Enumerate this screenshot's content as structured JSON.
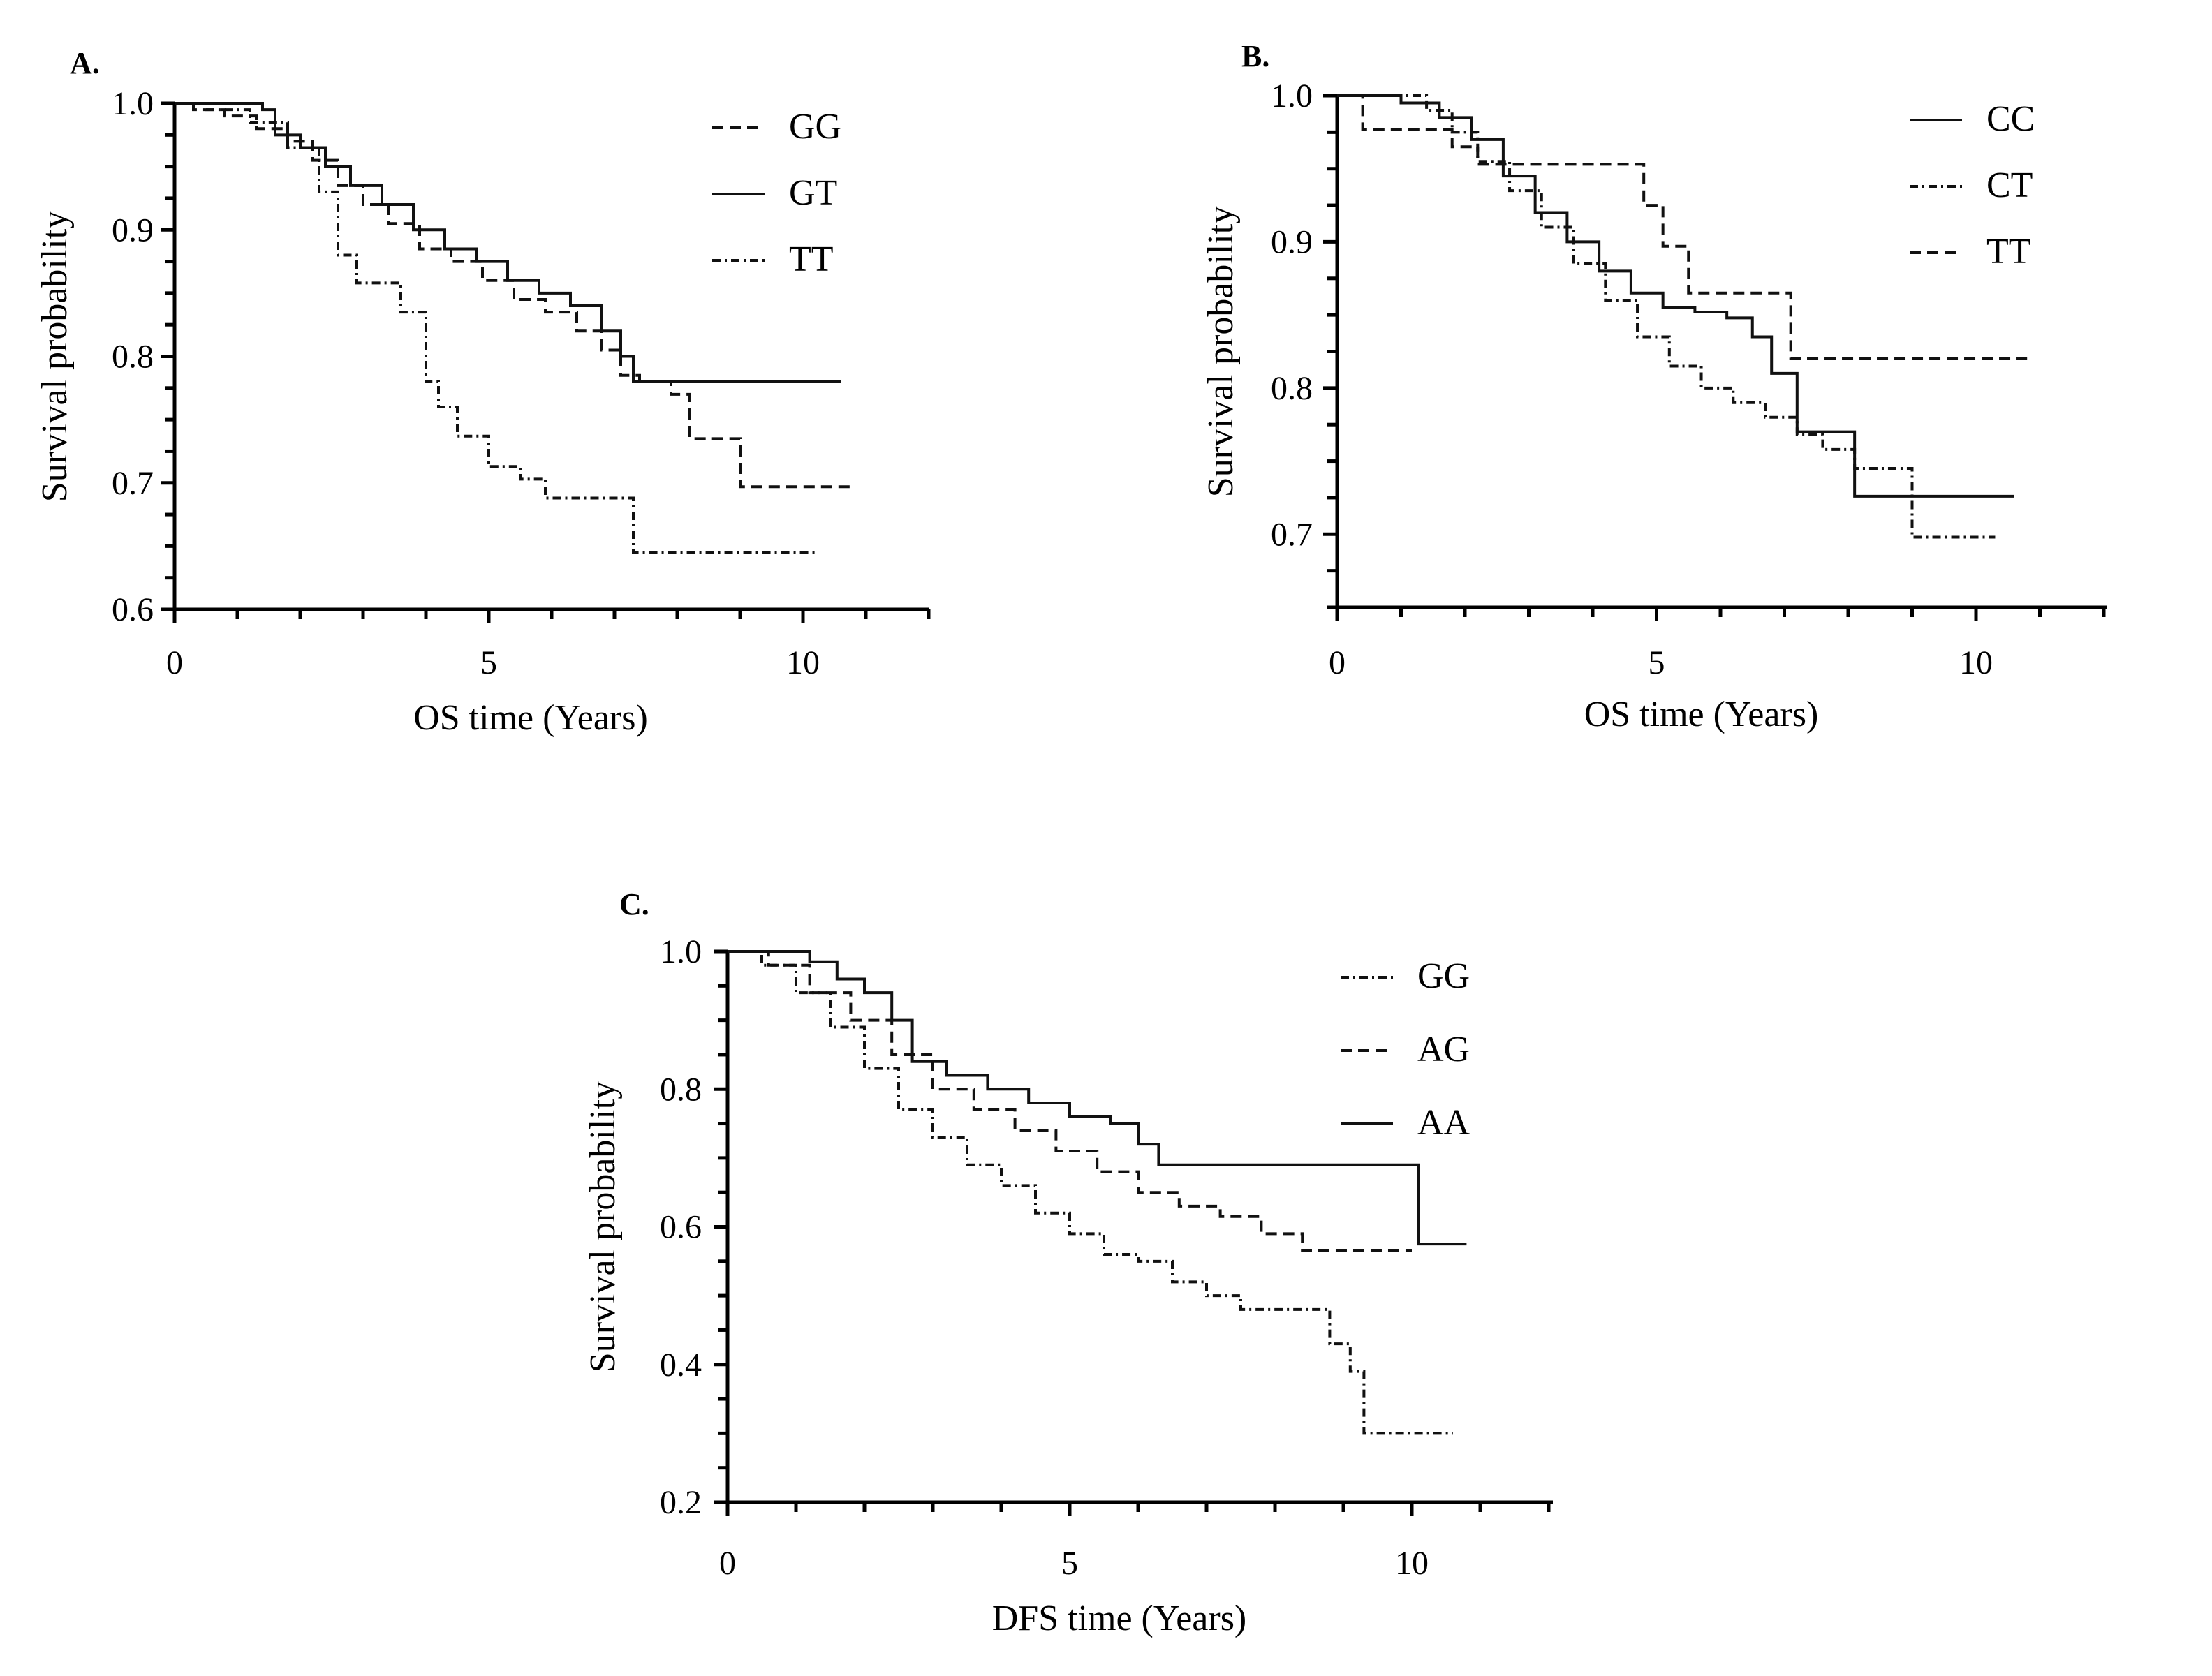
{
  "chart_data": [
    {
      "panel": "A.",
      "type": "line",
      "style": "step",
      "xlabel": "OS  time (Years)",
      "ylabel": "Survival probability",
      "xlim": [
        0,
        12
      ],
      "ylim": [
        0.6,
        1.0
      ],
      "xticks": [
        0,
        5,
        10
      ],
      "yticks": [
        0.6,
        0.7,
        0.8,
        0.9,
        1.0
      ],
      "legend_position": "top-right",
      "series": [
        {
          "name": "GG",
          "dash": "dashed",
          "x": [
            0,
            0.3,
            0.8,
            1.3,
            1.8,
            2.2,
            2.6,
            3.0,
            3.4,
            3.9,
            4.4,
            4.9,
            5.4,
            5.9,
            6.4,
            6.8,
            7.1,
            7.4,
            7.9,
            8.2,
            9.0,
            10.8
          ],
          "y": [
            1.0,
            0.995,
            0.99,
            0.98,
            0.97,
            0.955,
            0.935,
            0.92,
            0.905,
            0.885,
            0.875,
            0.86,
            0.845,
            0.835,
            0.82,
            0.805,
            0.785,
            0.78,
            0.77,
            0.735,
            0.697,
            0.697
          ]
        },
        {
          "name": "GT",
          "dash": "solid",
          "x": [
            0,
            1.4,
            1.6,
            2.0,
            2.4,
            2.8,
            3.3,
            3.8,
            4.3,
            4.8,
            5.3,
            5.8,
            6.3,
            6.8,
            7.1,
            7.3,
            10.6
          ],
          "y": [
            1.0,
            0.995,
            0.975,
            0.965,
            0.95,
            0.935,
            0.92,
            0.9,
            0.885,
            0.875,
            0.86,
            0.85,
            0.84,
            0.82,
            0.8,
            0.78,
            0.78
          ]
        },
        {
          "name": "TT",
          "dash": "dotdash",
          "x": [
            0,
            0.5,
            1.2,
            1.8,
            2.3,
            2.6,
            2.9,
            3.6,
            4.0,
            4.2,
            4.5,
            5.0,
            5.5,
            5.9,
            6.5,
            7.3,
            10.2
          ],
          "y": [
            1.0,
            0.995,
            0.985,
            0.965,
            0.93,
            0.88,
            0.858,
            0.835,
            0.78,
            0.76,
            0.737,
            0.713,
            0.703,
            0.688,
            0.688,
            0.645,
            0.645
          ]
        }
      ]
    },
    {
      "panel": "B.",
      "type": "line",
      "style": "step",
      "xlabel": "OS time (Years)",
      "ylabel": "Survival probability",
      "xlim": [
        0,
        12
      ],
      "ylim": [
        0.65,
        1.0
      ],
      "xticks": [
        0,
        5,
        10
      ],
      "yticks": [
        0.7,
        0.8,
        0.9,
        1.0
      ],
      "legend_position": "top-right",
      "series": [
        {
          "name": "CC",
          "dash": "solid",
          "x": [
            0,
            1.0,
            1.6,
            2.1,
            2.6,
            3.1,
            3.6,
            4.1,
            4.6,
            5.1,
            5.6,
            6.1,
            6.5,
            6.8,
            7.2,
            8.1,
            10.6
          ],
          "y": [
            1.0,
            0.995,
            0.985,
            0.97,
            0.945,
            0.92,
            0.9,
            0.88,
            0.865,
            0.855,
            0.852,
            0.848,
            0.835,
            0.81,
            0.77,
            0.726,
            0.726
          ]
        },
        {
          "name": "CT",
          "dash": "dotdash",
          "x": [
            0,
            1.4,
            1.8,
            2.2,
            2.7,
            3.2,
            3.7,
            4.2,
            4.7,
            5.2,
            5.7,
            6.2,
            6.7,
            7.2,
            7.6,
            8.1,
            9.0,
            10.3
          ],
          "y": [
            1.0,
            0.99,
            0.975,
            0.955,
            0.935,
            0.91,
            0.885,
            0.86,
            0.835,
            0.815,
            0.8,
            0.79,
            0.78,
            0.768,
            0.758,
            0.745,
            0.698,
            0.698
          ]
        },
        {
          "name": "TT",
          "dash": "dashed",
          "x": [
            0,
            0.4,
            1.0,
            1.8,
            2.2,
            2.5,
            4.8,
            5.1,
            5.5,
            5.9,
            6.8,
            7.1,
            10.8
          ],
          "y": [
            1.0,
            0.977,
            0.977,
            0.965,
            0.953,
            0.953,
            0.925,
            0.897,
            0.865,
            0.865,
            0.865,
            0.82,
            0.82
          ]
        }
      ]
    },
    {
      "panel": "C.",
      "type": "line",
      "style": "step",
      "xlabel": "DFS time (Years)",
      "ylabel": "Survival probability",
      "xlim": [
        0,
        12
      ],
      "ylim": [
        0.2,
        1.0
      ],
      "xticks": [
        0,
        5,
        10
      ],
      "yticks": [
        0.2,
        0.4,
        0.6,
        0.8,
        1.0
      ],
      "legend_position": "top-right",
      "series": [
        {
          "name": "GG",
          "dash": "dotdash",
          "x": [
            0,
            0.5,
            1.0,
            1.5,
            2.0,
            2.5,
            3.0,
            3.5,
            4.0,
            4.5,
            5.0,
            5.5,
            6.0,
            6.5,
            7.0,
            7.5,
            8.5,
            8.8,
            9.1,
            9.3,
            10.6
          ],
          "y": [
            1.0,
            0.98,
            0.94,
            0.89,
            0.83,
            0.77,
            0.73,
            0.69,
            0.66,
            0.62,
            0.59,
            0.56,
            0.55,
            0.52,
            0.5,
            0.48,
            0.48,
            0.43,
            0.39,
            0.3,
            0.3
          ]
        },
        {
          "name": "AG",
          "dash": "dashed",
          "x": [
            0,
            0.6,
            1.2,
            1.8,
            2.4,
            3.0,
            3.6,
            4.2,
            4.8,
            5.4,
            6.0,
            6.6,
            7.2,
            7.8,
            8.4,
            10.0
          ],
          "y": [
            1.0,
            0.98,
            0.94,
            0.9,
            0.85,
            0.8,
            0.77,
            0.74,
            0.71,
            0.68,
            0.65,
            0.63,
            0.615,
            0.59,
            0.565,
            0.565
          ]
        },
        {
          "name": "AA",
          "dash": "solid",
          "x": [
            0,
            1.2,
            1.6,
            2.0,
            2.4,
            2.7,
            3.2,
            3.8,
            4.4,
            5.0,
            5.6,
            6.0,
            6.3,
            10.0,
            10.1,
            10.8
          ],
          "y": [
            1.0,
            0.985,
            0.96,
            0.94,
            0.9,
            0.84,
            0.82,
            0.8,
            0.78,
            0.76,
            0.75,
            0.72,
            0.69,
            0.69,
            0.575,
            0.575
          ]
        }
      ]
    }
  ]
}
